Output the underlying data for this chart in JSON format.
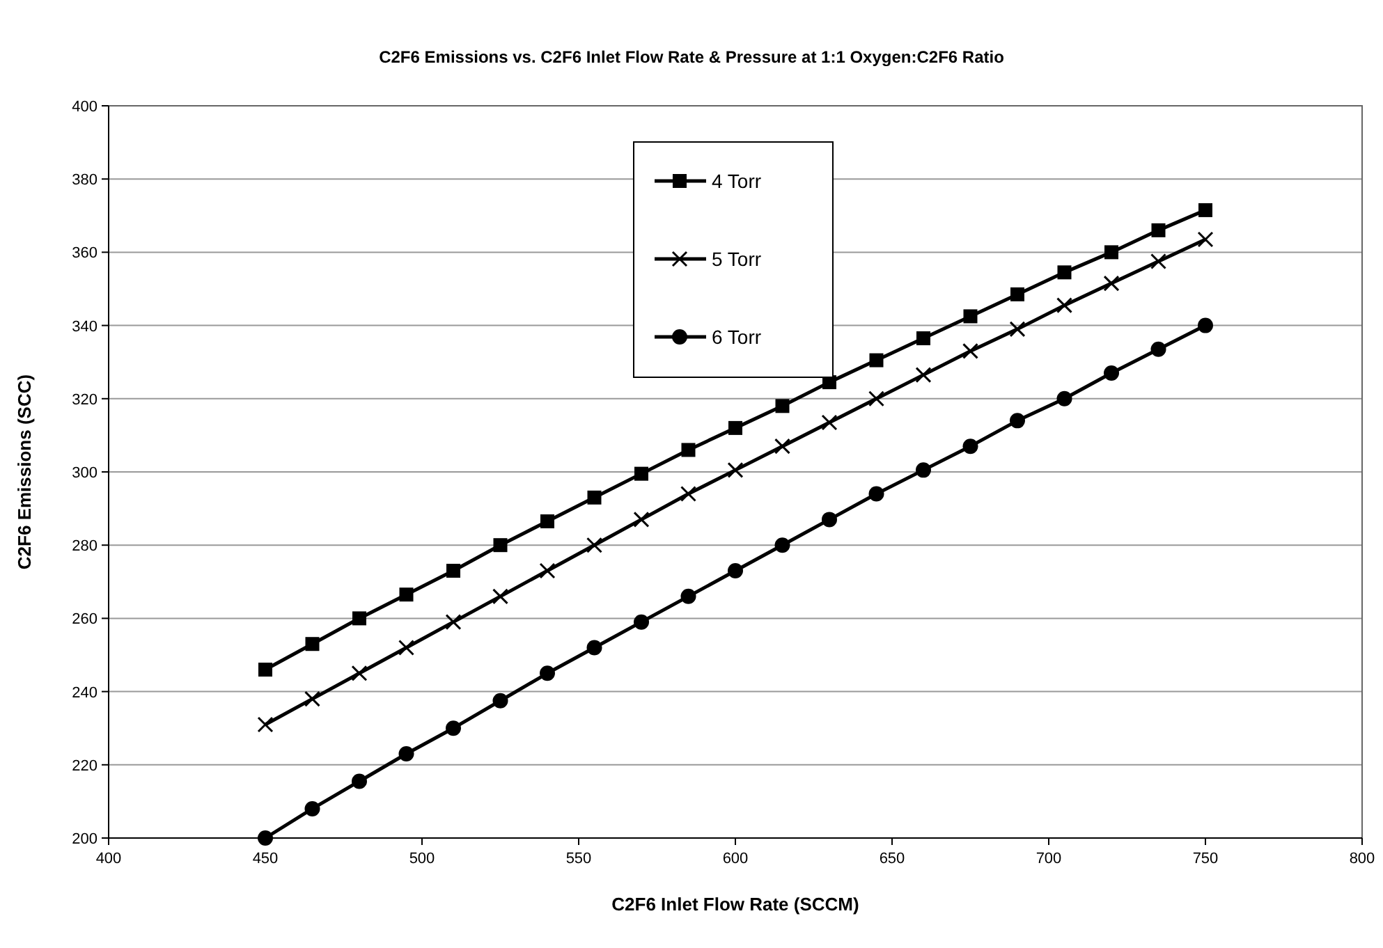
{
  "chart_data": {
    "type": "line",
    "title": "C2F6 Emissions vs. C2F6 Inlet Flow Rate & Pressure at 1:1 Oxygen:C2F6 Ratio",
    "xlabel": "C2F6 Inlet Flow Rate (SCCM)",
    "ylabel": "C2F6 Emissions (SCC)",
    "x": [
      450,
      465,
      480,
      495,
      510,
      525,
      540,
      555,
      570,
      585,
      600,
      615,
      630,
      645,
      660,
      675,
      690,
      705,
      720,
      735,
      750
    ],
    "series": [
      {
        "name": "4 Torr",
        "color": "#000000",
        "marker": "square",
        "values": [
          246,
          253,
          260,
          266.5,
          273,
          280,
          286.5,
          293,
          299.5,
          306,
          312,
          318,
          324.5,
          330.5,
          336.5,
          342.5,
          348.5,
          354.5,
          360,
          366,
          371.5
        ]
      },
      {
        "name": "5 Torr",
        "color": "#000000",
        "marker": "cross",
        "values": [
          231,
          238,
          245,
          252,
          259,
          266,
          273,
          280,
          287,
          294,
          300.5,
          307,
          313.5,
          320,
          326.5,
          333,
          339,
          345.5,
          351.5,
          357.5,
          363.5
        ]
      },
      {
        "name": "6 Torr",
        "color": "#000000",
        "marker": "circle",
        "values": [
          200,
          208,
          215.5,
          223,
          230,
          237.5,
          245,
          252,
          259,
          266,
          273,
          280,
          287,
          294,
          300.5,
          307,
          314,
          320,
          327,
          333.5,
          340
        ]
      }
    ],
    "xlim": [
      400,
      800
    ],
    "xticks": [
      400,
      450,
      500,
      550,
      600,
      650,
      700,
      750,
      800
    ],
    "ylim": [
      200,
      400
    ],
    "yticks": [
      200,
      220,
      240,
      260,
      280,
      300,
      320,
      340,
      360,
      380,
      400
    ],
    "grid": "y",
    "legend": "top",
    "line_style": "solid"
  }
}
